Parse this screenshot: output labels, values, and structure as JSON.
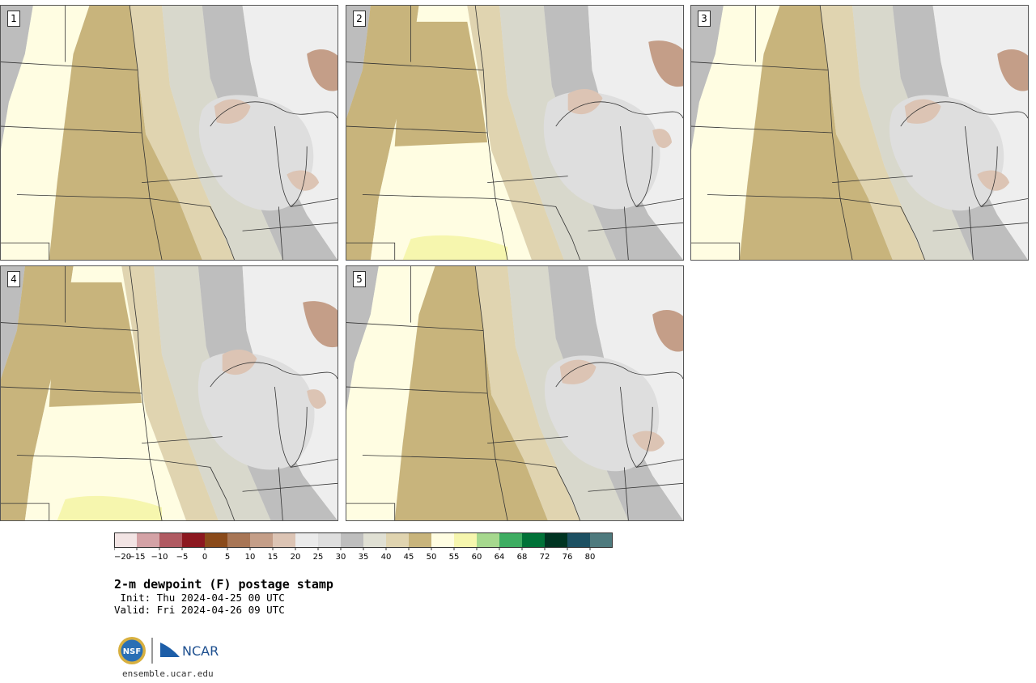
{
  "title": "2-m dewpoint (F) postage stamp",
  "init": " Init: Thu 2024-04-25 00 UTC",
  "valid": "Valid: Fri 2024-04-26 09 UTC",
  "website": "ensemble.ucar.edu",
  "logos": {
    "nsf": "NSF",
    "ncar": "NCAR"
  },
  "panels": [
    {
      "label": "1"
    },
    {
      "label": "2"
    },
    {
      "label": "3"
    },
    {
      "label": "4"
    },
    {
      "label": "5"
    }
  ],
  "colorbar": {
    "tick_labels": [
      "−20",
      "−15",
      "−10",
      "−5",
      "0",
      "5",
      "10",
      "15",
      "20",
      "25",
      "30",
      "35",
      "40",
      "45",
      "50",
      "55",
      "60",
      "64",
      "68",
      "72",
      "76",
      "80"
    ],
    "colors": [
      "#f2e4e4",
      "#d4a2a6",
      "#b05a62",
      "#8c1820",
      "#8a4a1a",
      "#a87656",
      "#c49e88",
      "#dcc4b4",
      "#ebebeb",
      "#dedede",
      "#bebebe",
      "#e0e0d4",
      "#e0d4b0",
      "#c8b47c",
      "#fffde2",
      "#f6f6ae",
      "#a6d88e",
      "#3ead62",
      "#007238",
      "#003422",
      "#1c5062",
      "#4e7a7e"
    ]
  }
}
